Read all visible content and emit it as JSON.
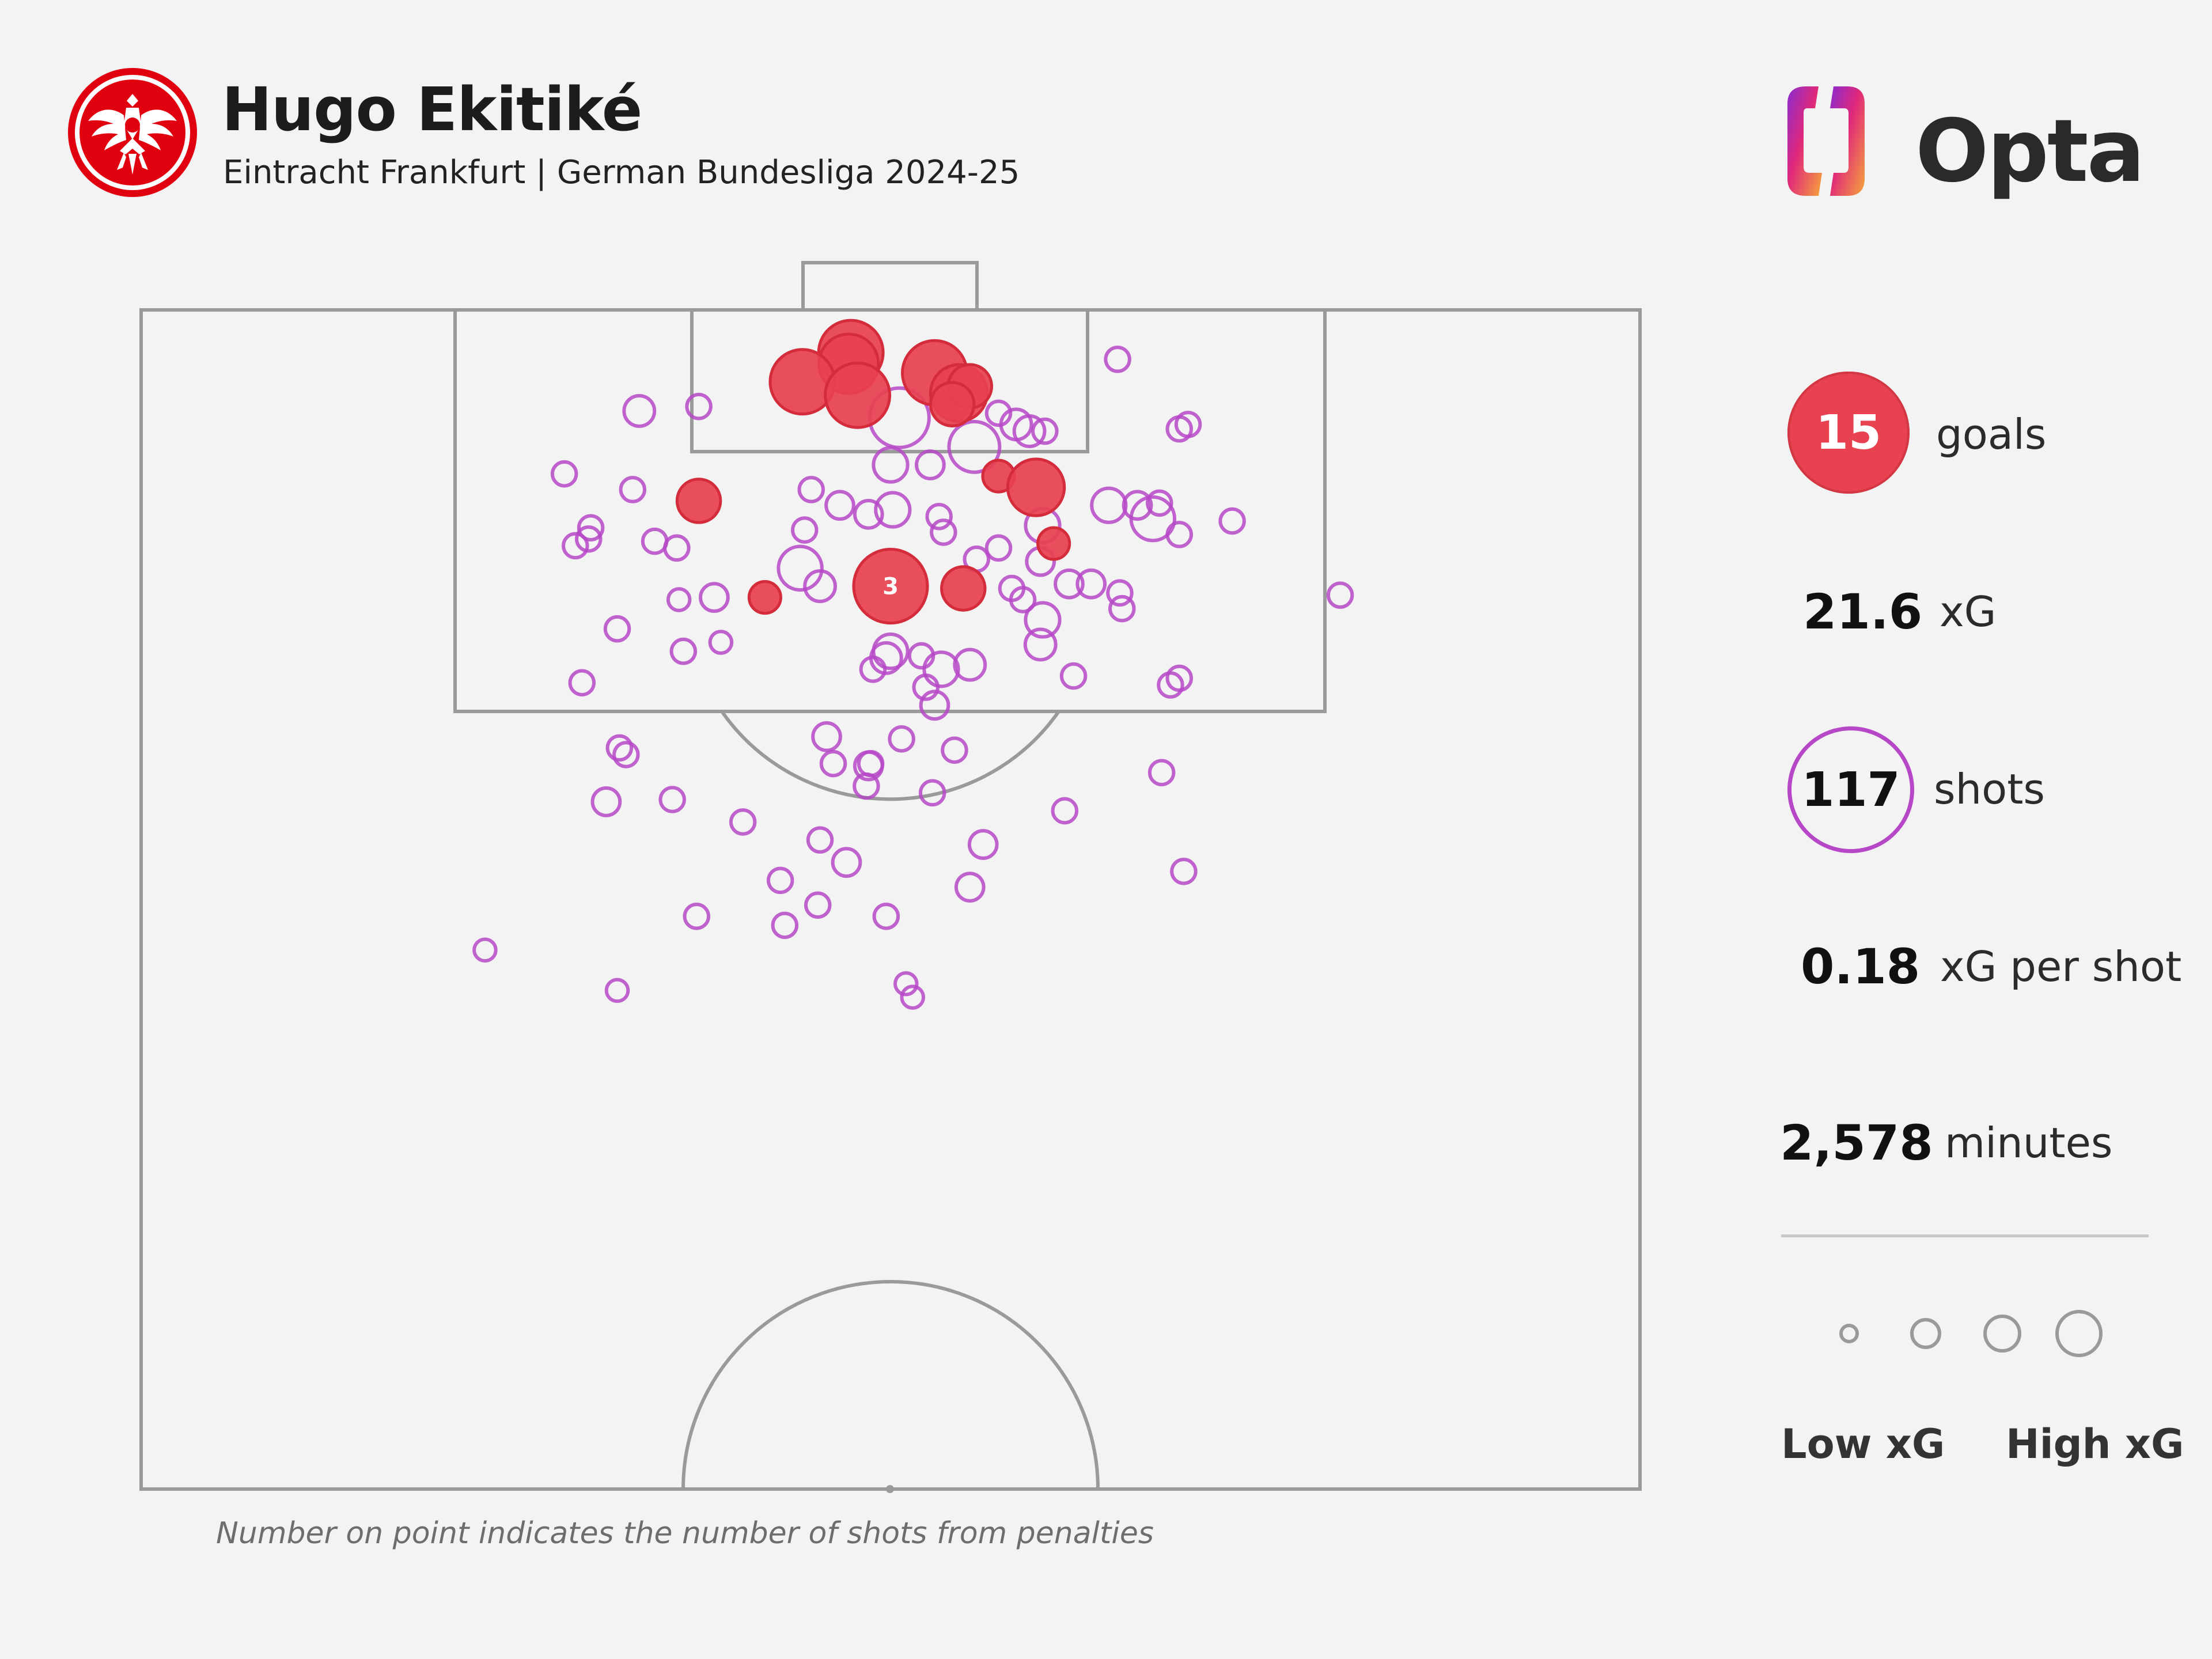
{
  "header": {
    "player_name": "Hugo Ekitiké",
    "subtitle": "Eintracht Frankfurt | German Bundesliga 2024-25",
    "brand": "Opta"
  },
  "colors": {
    "goal": "#e8404f",
    "shot": "#b648c7",
    "pitch_lines": "#9a9a9a",
    "background": "#f3f3f3"
  },
  "stats": {
    "goals_value": "15",
    "goals_label": "goals",
    "xg_value": "21.6",
    "xg_label": "xG",
    "shots_value": "117",
    "shots_label": "shots",
    "xg_per_shot_value": "0.18",
    "xg_per_shot_label": "xG per shot",
    "minutes_value": "2,578",
    "minutes_label": "minutes"
  },
  "legend": {
    "low_label": "Low xG",
    "high_label": "High xG",
    "xg_levels": [
      0.05,
      0.15,
      0.3,
      0.5
    ]
  },
  "footnote": "Number on point indicates the number of shots from penalties",
  "chart_data": {
    "type": "scatter",
    "description_units": "x = metres across pitch width (0-68, left touchline to right), y = metres from goal line; xg = expected goals",
    "pitch": {
      "width_m": 68,
      "half_length_m": 52.5,
      "orientation": "goal-at-top"
    },
    "goals": [
      {
        "x": 32.2,
        "y": 1.9,
        "xg": 0.55
      },
      {
        "x": 32.1,
        "y": 2.4,
        "xg": 0.45
      },
      {
        "x": 30.0,
        "y": 3.2,
        "xg": 0.55
      },
      {
        "x": 32.5,
        "y": 3.8,
        "xg": 0.55
      },
      {
        "x": 36.0,
        "y": 2.8,
        "xg": 0.55
      },
      {
        "x": 37.1,
        "y": 3.7,
        "xg": 0.4
      },
      {
        "x": 37.6,
        "y": 3.4,
        "xg": 0.2
      },
      {
        "x": 36.8,
        "y": 4.2,
        "xg": 0.2
      },
      {
        "x": 25.3,
        "y": 8.5,
        "xg": 0.2
      },
      {
        "x": 38.9,
        "y": 7.4,
        "xg": 0.08
      },
      {
        "x": 40.6,
        "y": 7.9,
        "xg": 0.4
      },
      {
        "x": 41.4,
        "y": 10.4,
        "xg": 0.08
      },
      {
        "x": 34.0,
        "y": 12.3,
        "xg": 0.76,
        "penalties": 3
      },
      {
        "x": 37.3,
        "y": 12.4,
        "xg": 0.2
      },
      {
        "x": 28.3,
        "y": 12.8,
        "xg": 0.08
      }
    ],
    "shots": [
      {
        "x": 44.3,
        "y": 2.2,
        "xg": 0.03
      },
      {
        "x": 22.6,
        "y": 4.5,
        "xg": 0.07
      },
      {
        "x": 25.3,
        "y": 4.3,
        "xg": 0.03
      },
      {
        "x": 34.4,
        "y": 4.8,
        "xg": 0.45
      },
      {
        "x": 38.9,
        "y": 4.6,
        "xg": 0.03
      },
      {
        "x": 39.7,
        "y": 5.1,
        "xg": 0.07
      },
      {
        "x": 40.3,
        "y": 5.4,
        "xg": 0.07
      },
      {
        "x": 41.0,
        "y": 5.4,
        "xg": 0.03
      },
      {
        "x": 37.8,
        "y": 6.1,
        "xg": 0.3
      },
      {
        "x": 47.1,
        "y": 5.3,
        "xg": 0.03
      },
      {
        "x": 47.5,
        "y": 5.1,
        "xg": 0.03
      },
      {
        "x": 34.0,
        "y": 6.9,
        "xg": 0.1
      },
      {
        "x": 35.8,
        "y": 6.9,
        "xg": 0.05
      },
      {
        "x": 19.2,
        "y": 7.3,
        "xg": 0.03
      },
      {
        "x": 22.3,
        "y": 8.0,
        "xg": 0.03
      },
      {
        "x": 30.4,
        "y": 8.0,
        "xg": 0.03
      },
      {
        "x": 31.7,
        "y": 8.7,
        "xg": 0.05
      },
      {
        "x": 33.0,
        "y": 9.1,
        "xg": 0.05
      },
      {
        "x": 34.1,
        "y": 8.9,
        "xg": 0.1
      },
      {
        "x": 36.2,
        "y": 9.2,
        "xg": 0.03
      },
      {
        "x": 36.4,
        "y": 9.9,
        "xg": 0.03
      },
      {
        "x": 43.9,
        "y": 8.7,
        "xg": 0.1
      },
      {
        "x": 45.2,
        "y": 8.7,
        "xg": 0.05
      },
      {
        "x": 46.2,
        "y": 8.6,
        "xg": 0.03
      },
      {
        "x": 45.9,
        "y": 9.3,
        "xg": 0.2
      },
      {
        "x": 40.9,
        "y": 9.6,
        "xg": 0.1
      },
      {
        "x": 47.1,
        "y": 10.0,
        "xg": 0.03
      },
      {
        "x": 49.5,
        "y": 9.4,
        "xg": 0.03
      },
      {
        "x": 20.4,
        "y": 9.7,
        "xg": 0.03
      },
      {
        "x": 20.3,
        "y": 10.2,
        "xg": 0.03
      },
      {
        "x": 19.7,
        "y": 10.5,
        "xg": 0.03
      },
      {
        "x": 23.3,
        "y": 10.3,
        "xg": 0.03
      },
      {
        "x": 24.3,
        "y": 10.6,
        "xg": 0.03
      },
      {
        "x": 30.1,
        "y": 9.8,
        "xg": 0.03
      },
      {
        "x": 37.9,
        "y": 11.1,
        "xg": 0.03
      },
      {
        "x": 38.9,
        "y": 10.6,
        "xg": 0.03
      },
      {
        "x": 40.8,
        "y": 11.2,
        "xg": 0.05
      },
      {
        "x": 29.9,
        "y": 11.5,
        "xg": 0.2
      },
      {
        "x": 30.8,
        "y": 12.3,
        "xg": 0.07
      },
      {
        "x": 39.5,
        "y": 12.4,
        "xg": 0.03
      },
      {
        "x": 42.1,
        "y": 12.2,
        "xg": 0.05
      },
      {
        "x": 43.1,
        "y": 12.2,
        "xg": 0.05
      },
      {
        "x": 44.4,
        "y": 12.6,
        "xg": 0.03
      },
      {
        "x": 40.0,
        "y": 12.9,
        "xg": 0.03
      },
      {
        "x": 26.0,
        "y": 12.8,
        "xg": 0.05
      },
      {
        "x": 24.4,
        "y": 12.9,
        "xg": 0.02
      },
      {
        "x": 44.5,
        "y": 13.3,
        "xg": 0.03
      },
      {
        "x": 54.4,
        "y": 12.7,
        "xg": 0.03
      },
      {
        "x": 40.9,
        "y": 13.8,
        "xg": 0.1
      },
      {
        "x": 40.8,
        "y": 14.9,
        "xg": 0.07
      },
      {
        "x": 21.6,
        "y": 14.2,
        "xg": 0.03
      },
      {
        "x": 26.3,
        "y": 14.8,
        "xg": 0.02
      },
      {
        "x": 24.6,
        "y": 15.2,
        "xg": 0.03
      },
      {
        "x": 34.0,
        "y": 15.2,
        "xg": 0.1
      },
      {
        "x": 33.8,
        "y": 15.5,
        "xg": 0.07
      },
      {
        "x": 33.2,
        "y": 16.0,
        "xg": 0.03
      },
      {
        "x": 35.4,
        "y": 15.4,
        "xg": 0.03
      },
      {
        "x": 36.3,
        "y": 16.0,
        "xg": 0.1
      },
      {
        "x": 37.6,
        "y": 15.8,
        "xg": 0.07
      },
      {
        "x": 35.6,
        "y": 16.8,
        "xg": 0.03
      },
      {
        "x": 36.0,
        "y": 17.6,
        "xg": 0.05
      },
      {
        "x": 42.3,
        "y": 16.3,
        "xg": 0.03
      },
      {
        "x": 20.0,
        "y": 16.6,
        "xg": 0.03
      },
      {
        "x": 46.7,
        "y": 16.7,
        "xg": 0.03
      },
      {
        "x": 47.1,
        "y": 16.4,
        "xg": 0.03
      },
      {
        "x": 31.1,
        "y": 19.0,
        "xg": 0.05
      },
      {
        "x": 34.5,
        "y": 19.1,
        "xg": 0.03
      },
      {
        "x": 36.9,
        "y": 19.6,
        "xg": 0.03
      },
      {
        "x": 22.0,
        "y": 19.8,
        "xg": 0.03
      },
      {
        "x": 21.7,
        "y": 19.5,
        "xg": 0.03
      },
      {
        "x": 31.4,
        "y": 20.2,
        "xg": 0.03
      },
      {
        "x": 33.0,
        "y": 20.3,
        "xg": 0.05
      },
      {
        "x": 33.1,
        "y": 20.2,
        "xg": 0.03
      },
      {
        "x": 32.9,
        "y": 21.2,
        "xg": 0.03
      },
      {
        "x": 35.9,
        "y": 21.5,
        "xg": 0.03
      },
      {
        "x": 46.3,
        "y": 20.6,
        "xg": 0.03
      },
      {
        "x": 21.1,
        "y": 21.9,
        "xg": 0.05
      },
      {
        "x": 24.1,
        "y": 21.8,
        "xg": 0.03
      },
      {
        "x": 41.9,
        "y": 22.3,
        "xg": 0.03
      },
      {
        "x": 27.3,
        "y": 22.8,
        "xg": 0.03
      },
      {
        "x": 30.8,
        "y": 23.6,
        "xg": 0.03
      },
      {
        "x": 38.2,
        "y": 23.8,
        "xg": 0.05
      },
      {
        "x": 32.0,
        "y": 24.6,
        "xg": 0.05
      },
      {
        "x": 29.0,
        "y": 25.4,
        "xg": 0.03
      },
      {
        "x": 37.6,
        "y": 25.7,
        "xg": 0.05
      },
      {
        "x": 47.3,
        "y": 25.0,
        "xg": 0.03
      },
      {
        "x": 30.7,
        "y": 26.5,
        "xg": 0.03
      },
      {
        "x": 25.2,
        "y": 27.0,
        "xg": 0.03
      },
      {
        "x": 33.8,
        "y": 27.0,
        "xg": 0.03
      },
      {
        "x": 29.2,
        "y": 27.4,
        "xg": 0.03
      },
      {
        "x": 15.6,
        "y": 28.5,
        "xg": 0.02
      },
      {
        "x": 34.7,
        "y": 30.0,
        "xg": 0.02
      },
      {
        "x": 35.0,
        "y": 30.6,
        "xg": 0.02
      },
      {
        "x": 21.6,
        "y": 30.3,
        "xg": 0.02
      }
    ]
  }
}
